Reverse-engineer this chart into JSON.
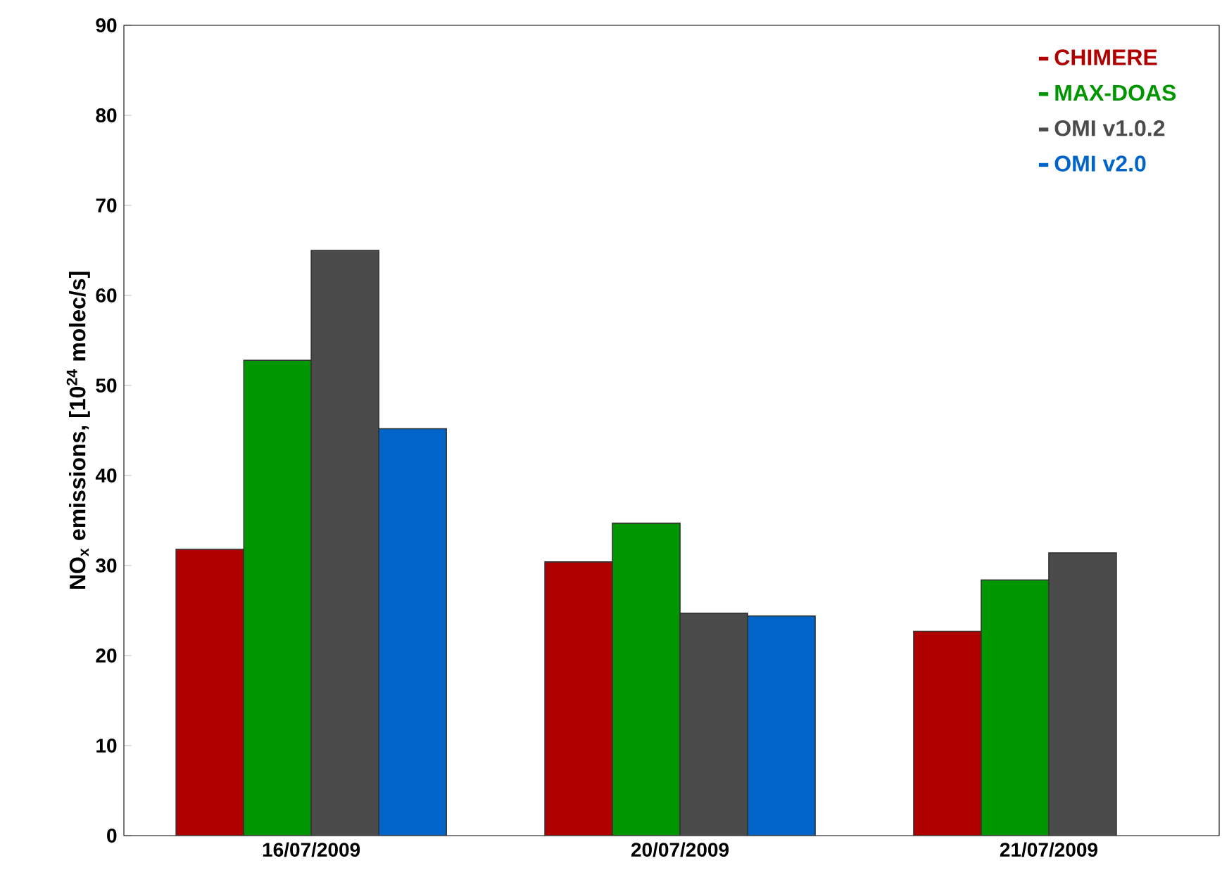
{
  "chart_data": {
    "type": "bar",
    "ylabel": "NO$_{x}$ emissions, [10$^{24}$ molec/s]",
    "categories": [
      "16/07/2009",
      "20/07/2009",
      "21/07/2009"
    ],
    "series": [
      {
        "name": "CHIMERE",
        "color": "#b00000",
        "values": [
          31.8,
          30.4,
          22.7
        ]
      },
      {
        "name": "MAX-DOAS",
        "color": "#009600",
        "values": [
          52.8,
          34.7,
          28.4
        ]
      },
      {
        "name": "OMI v1.0.2",
        "color": "#4b4b4b",
        "values": [
          65.0,
          24.7,
          31.4
        ]
      },
      {
        "name": "OMI v2.0",
        "color": "#0064c8",
        "values": [
          45.2,
          24.4,
          null
        ]
      }
    ],
    "ylim": [
      0,
      90
    ],
    "yticks": [
      0,
      10,
      20,
      30,
      40,
      50,
      60,
      70,
      80,
      90
    ],
    "grid": false,
    "legend": "top right"
  }
}
